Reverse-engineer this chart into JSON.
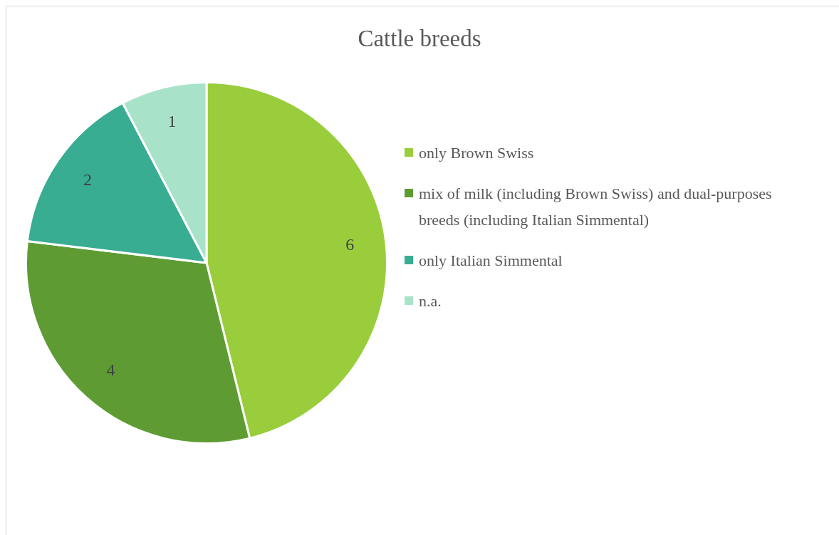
{
  "chart_data": {
    "type": "pie",
    "title": "Cattle breeds",
    "categories": [
      "only Brown Swiss",
      "mix of milk (including Brown Swiss) and dual-purposes breeds (including Italian Simmental)",
      "only Italian Simmental",
      "n.a."
    ],
    "values": [
      6,
      4,
      2,
      1
    ],
    "colors": [
      "#9acd3b",
      "#5e9c33",
      "#38ad91",
      "#a8e3c9"
    ],
    "data_labels": true,
    "legend": "right"
  }
}
